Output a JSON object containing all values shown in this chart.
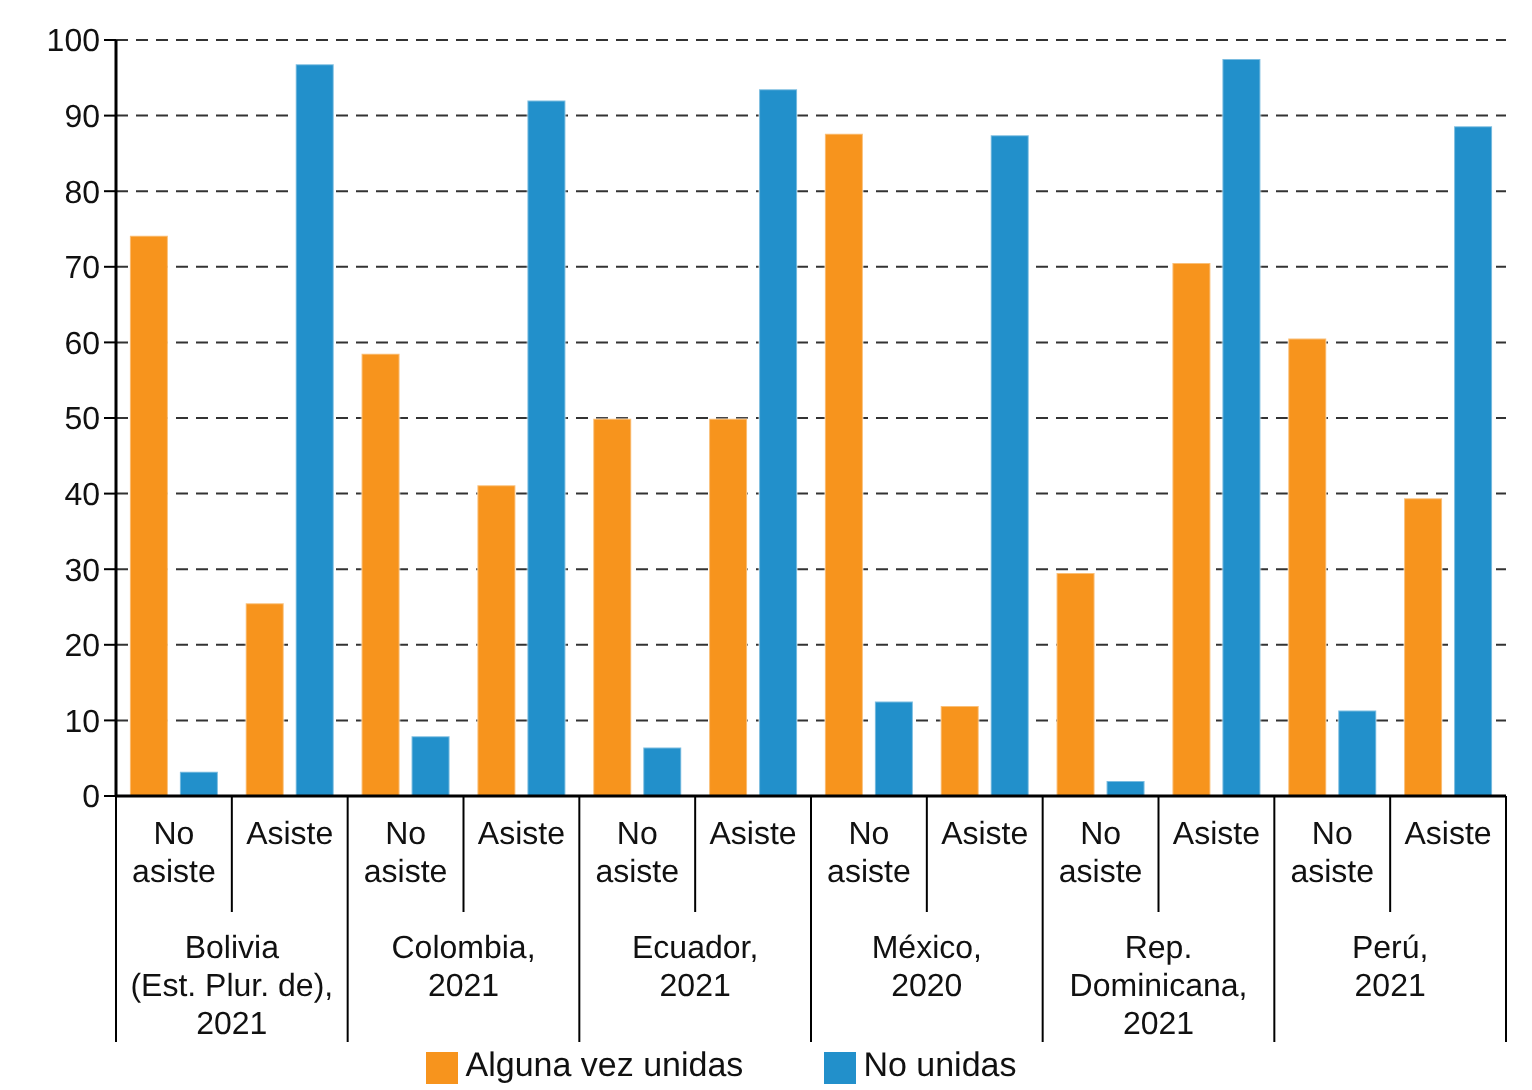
{
  "chart_data": {
    "type": "bar",
    "categories": [
      "No asiste",
      "Asiste",
      "No asiste",
      "Asiste",
      "No asiste",
      "Asiste",
      "No asiste",
      "Asiste",
      "No asiste",
      "Asiste",
      "No asiste",
      "Asiste"
    ],
    "series": [
      {
        "name": "Alguna vez unidas",
        "color": "#f7941d",
        "values": [
          74.1,
          25.5,
          58.5,
          41.1,
          49.9,
          49.9,
          87.6,
          11.9,
          29.5,
          70.5,
          60.5,
          39.4
        ]
      },
      {
        "name": "No unidas",
        "color": "#2290cb",
        "values": [
          3.2,
          96.8,
          7.9,
          92,
          6.4,
          93.5,
          12.5,
          87.4,
          2,
          97.5,
          11.3,
          88.6
        ]
      }
    ],
    "annotations": [
      "Bolivia\n(Est. Plur. de),\n2021",
      "Colombia,\n2021",
      "Ecuador,\n2021",
      "México,\n2020",
      "Rep.\nDominicana,\n2021",
      "Perú,\n2021"
    ],
    "ylim": [
      0,
      100
    ],
    "yticks": [
      0,
      10,
      20,
      30,
      40,
      50,
      60,
      70,
      80,
      90,
      100
    ],
    "grid": "y",
    "legend": "bottom"
  }
}
